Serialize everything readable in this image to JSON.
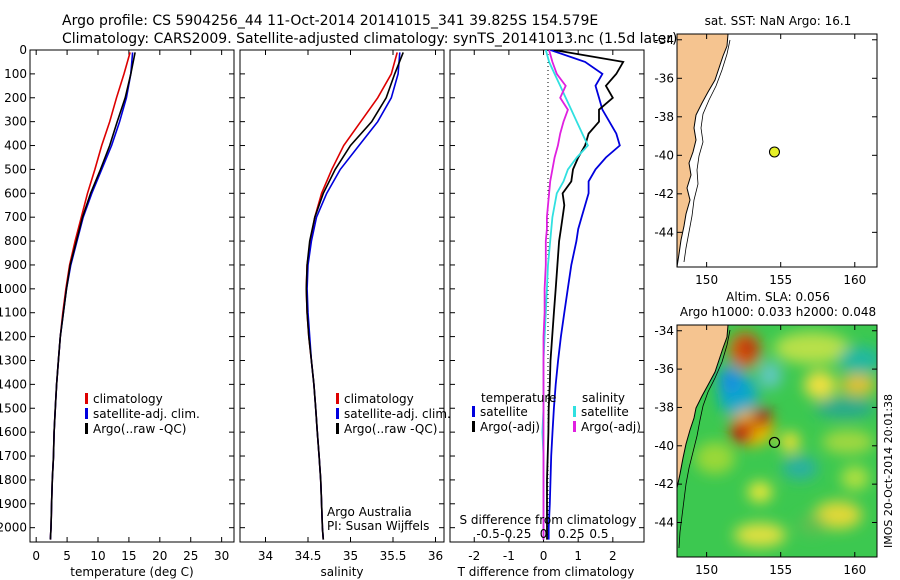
{
  "header": {
    "line1": "Argo profile: CS 5904256_44 11-Oct-2014 20141015_341 39.825S 154.579E",
    "line2": "Climatology: CARS2009. Satellite-adjusted climatology: synTS_20141013.nc (1.5d later)"
  },
  "colors": {
    "climatology": "#dd0000",
    "satellite": "#0000dd",
    "argo": "#000000",
    "sal_satellite": "#30e0e0",
    "sal_argo": "#e020e0",
    "land": "#f5c490"
  },
  "chart_data": [
    {
      "type": "line",
      "name": "temperature",
      "xlabel": "temperature (deg C)",
      "xlim": [
        -1,
        32
      ],
      "ylim": [
        2060,
        0
      ],
      "xticks": [
        0,
        5,
        10,
        15,
        20,
        25,
        30
      ],
      "yticks": [
        0,
        100,
        200,
        300,
        400,
        500,
        600,
        700,
        800,
        900,
        1000,
        1100,
        1200,
        1300,
        1400,
        1500,
        1600,
        1700,
        1800,
        1900,
        2000
      ],
      "legend": [
        "climatology",
        "satellite-adj. clim.",
        "Argo(..raw -QC)"
      ],
      "series": [
        {
          "name": "climatology",
          "depth": [
            10,
            100,
            200,
            300,
            400,
            500,
            600,
            700,
            800,
            900,
            1000,
            1100,
            1200,
            1300,
            1400,
            1500,
            1600,
            1700,
            1800,
            1900,
            2000,
            2050
          ],
          "values": [
            15.2,
            14.2,
            13.0,
            11.9,
            10.6,
            9.5,
            8.3,
            7.3,
            6.3,
            5.4,
            4.8,
            4.3,
            3.9,
            3.6,
            3.3,
            3.1,
            2.9,
            2.8,
            2.6,
            2.5,
            2.4,
            2.3
          ]
        },
        {
          "name": "satellite-adj. clim.",
          "depth": [
            10,
            100,
            200,
            300,
            400,
            500,
            600,
            700,
            800,
            900,
            1000,
            1100,
            1200,
            1300,
            1400,
            1500,
            1600,
            1700,
            1800,
            1900,
            2000,
            2050
          ],
          "values": [
            15.6,
            15.3,
            14.6,
            13.5,
            12.2,
            10.6,
            9.0,
            7.6,
            6.6,
            5.6,
            4.9,
            4.4,
            3.9,
            3.6,
            3.3,
            3.1,
            2.9,
            2.8,
            2.6,
            2.5,
            2.4,
            2.3
          ]
        },
        {
          "name": "Argo(..raw -QC)",
          "depth": [
            10,
            100,
            200,
            300,
            400,
            500,
            600,
            700,
            800,
            900,
            1000,
            1100,
            1200,
            1300,
            1400,
            1500,
            1600,
            1700,
            1800,
            1900,
            2000,
            2050
          ],
          "values": [
            16.0,
            15.3,
            14.4,
            13.1,
            11.9,
            10.4,
            8.8,
            7.5,
            6.5,
            5.5,
            4.9,
            4.4,
            3.9,
            3.6,
            3.3,
            3.1,
            2.9,
            2.8,
            2.6,
            2.5,
            2.4,
            2.3
          ]
        }
      ]
    },
    {
      "type": "line",
      "name": "salinity",
      "xlabel": "salinity",
      "xlim": [
        33.7,
        36.1
      ],
      "ylim": [
        2060,
        0
      ],
      "xticks": [
        34,
        34.5,
        35,
        35.5,
        36
      ],
      "legend": [
        "climatology",
        "satellite-adj. clim.",
        "Argo(..raw -QC)"
      ],
      "annotation": [
        "Argo Australia",
        "PI: Susan Wijffels"
      ],
      "series": [
        {
          "name": "climatology",
          "depth": [
            10,
            100,
            200,
            300,
            400,
            500,
            600,
            700,
            800,
            900,
            1000,
            1100,
            1200,
            1300,
            1400,
            1500,
            1600,
            1700,
            1800,
            1900,
            2000,
            2050
          ],
          "values": [
            35.55,
            35.48,
            35.32,
            35.12,
            34.92,
            34.78,
            34.66,
            34.58,
            34.53,
            34.49,
            34.48,
            34.49,
            34.51,
            34.54,
            34.57,
            34.59,
            34.61,
            34.63,
            34.65,
            34.66,
            34.67,
            34.68
          ]
        },
        {
          "name": "satellite-adj. clim.",
          "depth": [
            10,
            100,
            200,
            300,
            400,
            500,
            600,
            700,
            800,
            900,
            1000,
            1100,
            1200,
            1300,
            1400,
            1500,
            1600,
            1700,
            1800,
            1900,
            2000,
            2050
          ],
          "values": [
            35.58,
            35.56,
            35.48,
            35.32,
            35.1,
            34.88,
            34.72,
            34.6,
            34.54,
            34.5,
            34.49,
            34.5,
            34.52,
            34.54,
            34.57,
            34.59,
            34.61,
            34.63,
            34.65,
            34.66,
            34.67,
            34.68
          ]
        },
        {
          "name": "Argo(..raw -QC)",
          "depth": [
            10,
            100,
            200,
            300,
            400,
            500,
            600,
            700,
            800,
            900,
            1000,
            1100,
            1200,
            1300,
            1400,
            1500,
            1600,
            1700,
            1800,
            1900,
            2000,
            2050
          ],
          "values": [
            35.62,
            35.52,
            35.42,
            35.25,
            35.0,
            34.82,
            34.68,
            34.58,
            34.52,
            34.49,
            34.48,
            34.49,
            34.51,
            34.54,
            34.57,
            34.59,
            34.61,
            34.63,
            34.65,
            34.66,
            34.67,
            34.68
          ]
        }
      ]
    },
    {
      "type": "line",
      "name": "differences",
      "xlabel": "T difference from climatology",
      "xlim": [
        -2.7,
        2.9
      ],
      "ylim": [
        2060,
        0
      ],
      "xticks": [
        -2,
        -1,
        0,
        1,
        2
      ],
      "s_axis_title": "S difference from climatology",
      "s_ticks": [
        "-0.5",
        "-0.25",
        "0",
        "0.25",
        "0.5"
      ],
      "legend_titles": [
        "temperature",
        "salinity"
      ],
      "legend": [
        "satellite",
        "Argo(-adj)",
        "satellite",
        "Argo(-adj)"
      ],
      "series": [
        {
          "name": "temperature satellite",
          "depth": [
            0,
            50,
            100,
            150,
            200,
            250,
            300,
            350,
            400,
            450,
            500,
            550,
            600,
            650,
            700,
            750,
            800,
            900,
            1000,
            1100,
            1200,
            1300,
            1400,
            1500,
            1600,
            1700,
            1800,
            1900,
            2000,
            2050
          ],
          "values": [
            0.2,
            1.2,
            1.7,
            1.5,
            1.6,
            1.7,
            1.9,
            2.1,
            2.2,
            1.8,
            1.5,
            1.3,
            1.3,
            1.2,
            1.1,
            1.0,
            0.95,
            0.8,
            0.7,
            0.6,
            0.5,
            0.42,
            0.35,
            0.3,
            0.26,
            0.22,
            0.2,
            0.18,
            0.15,
            0.15
          ]
        },
        {
          "name": "temperature Argo(-adj)",
          "depth": [
            0,
            50,
            100,
            150,
            200,
            250,
            300,
            350,
            400,
            450,
            500,
            550,
            600,
            650,
            700,
            750,
            800,
            900,
            1000,
            1100,
            1200,
            1300,
            1400,
            1500,
            1600,
            1700,
            1800,
            1900,
            2000,
            2050
          ],
          "values": [
            0.3,
            2.3,
            2.1,
            1.8,
            2.0,
            1.6,
            1.6,
            1.3,
            1.2,
            1.0,
            0.85,
            0.8,
            0.55,
            0.6,
            0.55,
            0.5,
            0.45,
            0.4,
            0.35,
            0.3,
            0.25,
            0.2,
            0.18,
            0.15,
            0.14,
            0.12,
            0.1,
            0.1,
            0.1,
            0.1
          ]
        },
        {
          "name": "salinity satellite",
          "depth": [
            0,
            50,
            100,
            150,
            200,
            250,
            300,
            350,
            400,
            450,
            500,
            550,
            600,
            650,
            700,
            750,
            800,
            900,
            1000,
            1100,
            1200,
            1300,
            1400,
            1500,
            1600,
            1700,
            1800,
            1900,
            2000,
            2050
          ],
          "values": [
            0.02,
            0.05,
            0.1,
            0.15,
            0.2,
            0.25,
            0.3,
            0.35,
            0.4,
            0.3,
            0.22,
            0.18,
            0.12,
            0.1,
            0.08,
            0.07,
            0.06,
            0.04,
            0.03,
            0.02,
            0.01,
            0.0,
            0.0,
            0.0,
            -0.01,
            0.0,
            0.0,
            0.0,
            0.0,
            0.0
          ]
        },
        {
          "name": "salinity Argo(-adj)",
          "depth": [
            0,
            50,
            100,
            150,
            200,
            250,
            300,
            350,
            400,
            450,
            500,
            550,
            600,
            650,
            700,
            750,
            800,
            900,
            1000,
            1100,
            1200,
            1300,
            1400,
            1500,
            1600,
            1700,
            1800,
            1900,
            2000,
            2050
          ],
          "values": [
            0.05,
            0.08,
            0.12,
            0.2,
            0.15,
            0.22,
            0.18,
            0.15,
            0.13,
            0.1,
            0.08,
            0.06,
            0.05,
            0.04,
            0.03,
            0.03,
            0.02,
            0.02,
            0.01,
            0.01,
            0.0,
            0.0,
            0.0,
            0.0,
            0.0,
            0.0,
            0.0,
            0.0,
            0.0,
            0.0
          ]
        }
      ]
    },
    {
      "type": "map",
      "name": "sst-map",
      "title": "sat. SST: NaN Argo: 16.1",
      "xlim": [
        148,
        161.5
      ],
      "ylim": [
        -45.8,
        -33.7
      ],
      "xticks": [
        150,
        155,
        160
      ],
      "yticks": [
        -34,
        -36,
        -38,
        -40,
        -42,
        -44
      ],
      "marker": {
        "lon": 154.579,
        "lat": -39.825
      }
    },
    {
      "type": "heatmap",
      "name": "sla-map",
      "title_line1": "Altim. SLA: 0.056",
      "title_line2": "Argo h1000: 0.033 h2000: 0.048",
      "xlim": [
        148,
        161.5
      ],
      "ylim": [
        -45.8,
        -33.7
      ],
      "xticks": [
        150,
        155,
        160
      ],
      "yticks": [
        -34,
        -36,
        -38,
        -40,
        -42,
        -44
      ],
      "marker": {
        "lon": 154.579,
        "lat": -39.825
      },
      "side_label": "IMOS 20-Oct-2014 20:01:38"
    }
  ]
}
